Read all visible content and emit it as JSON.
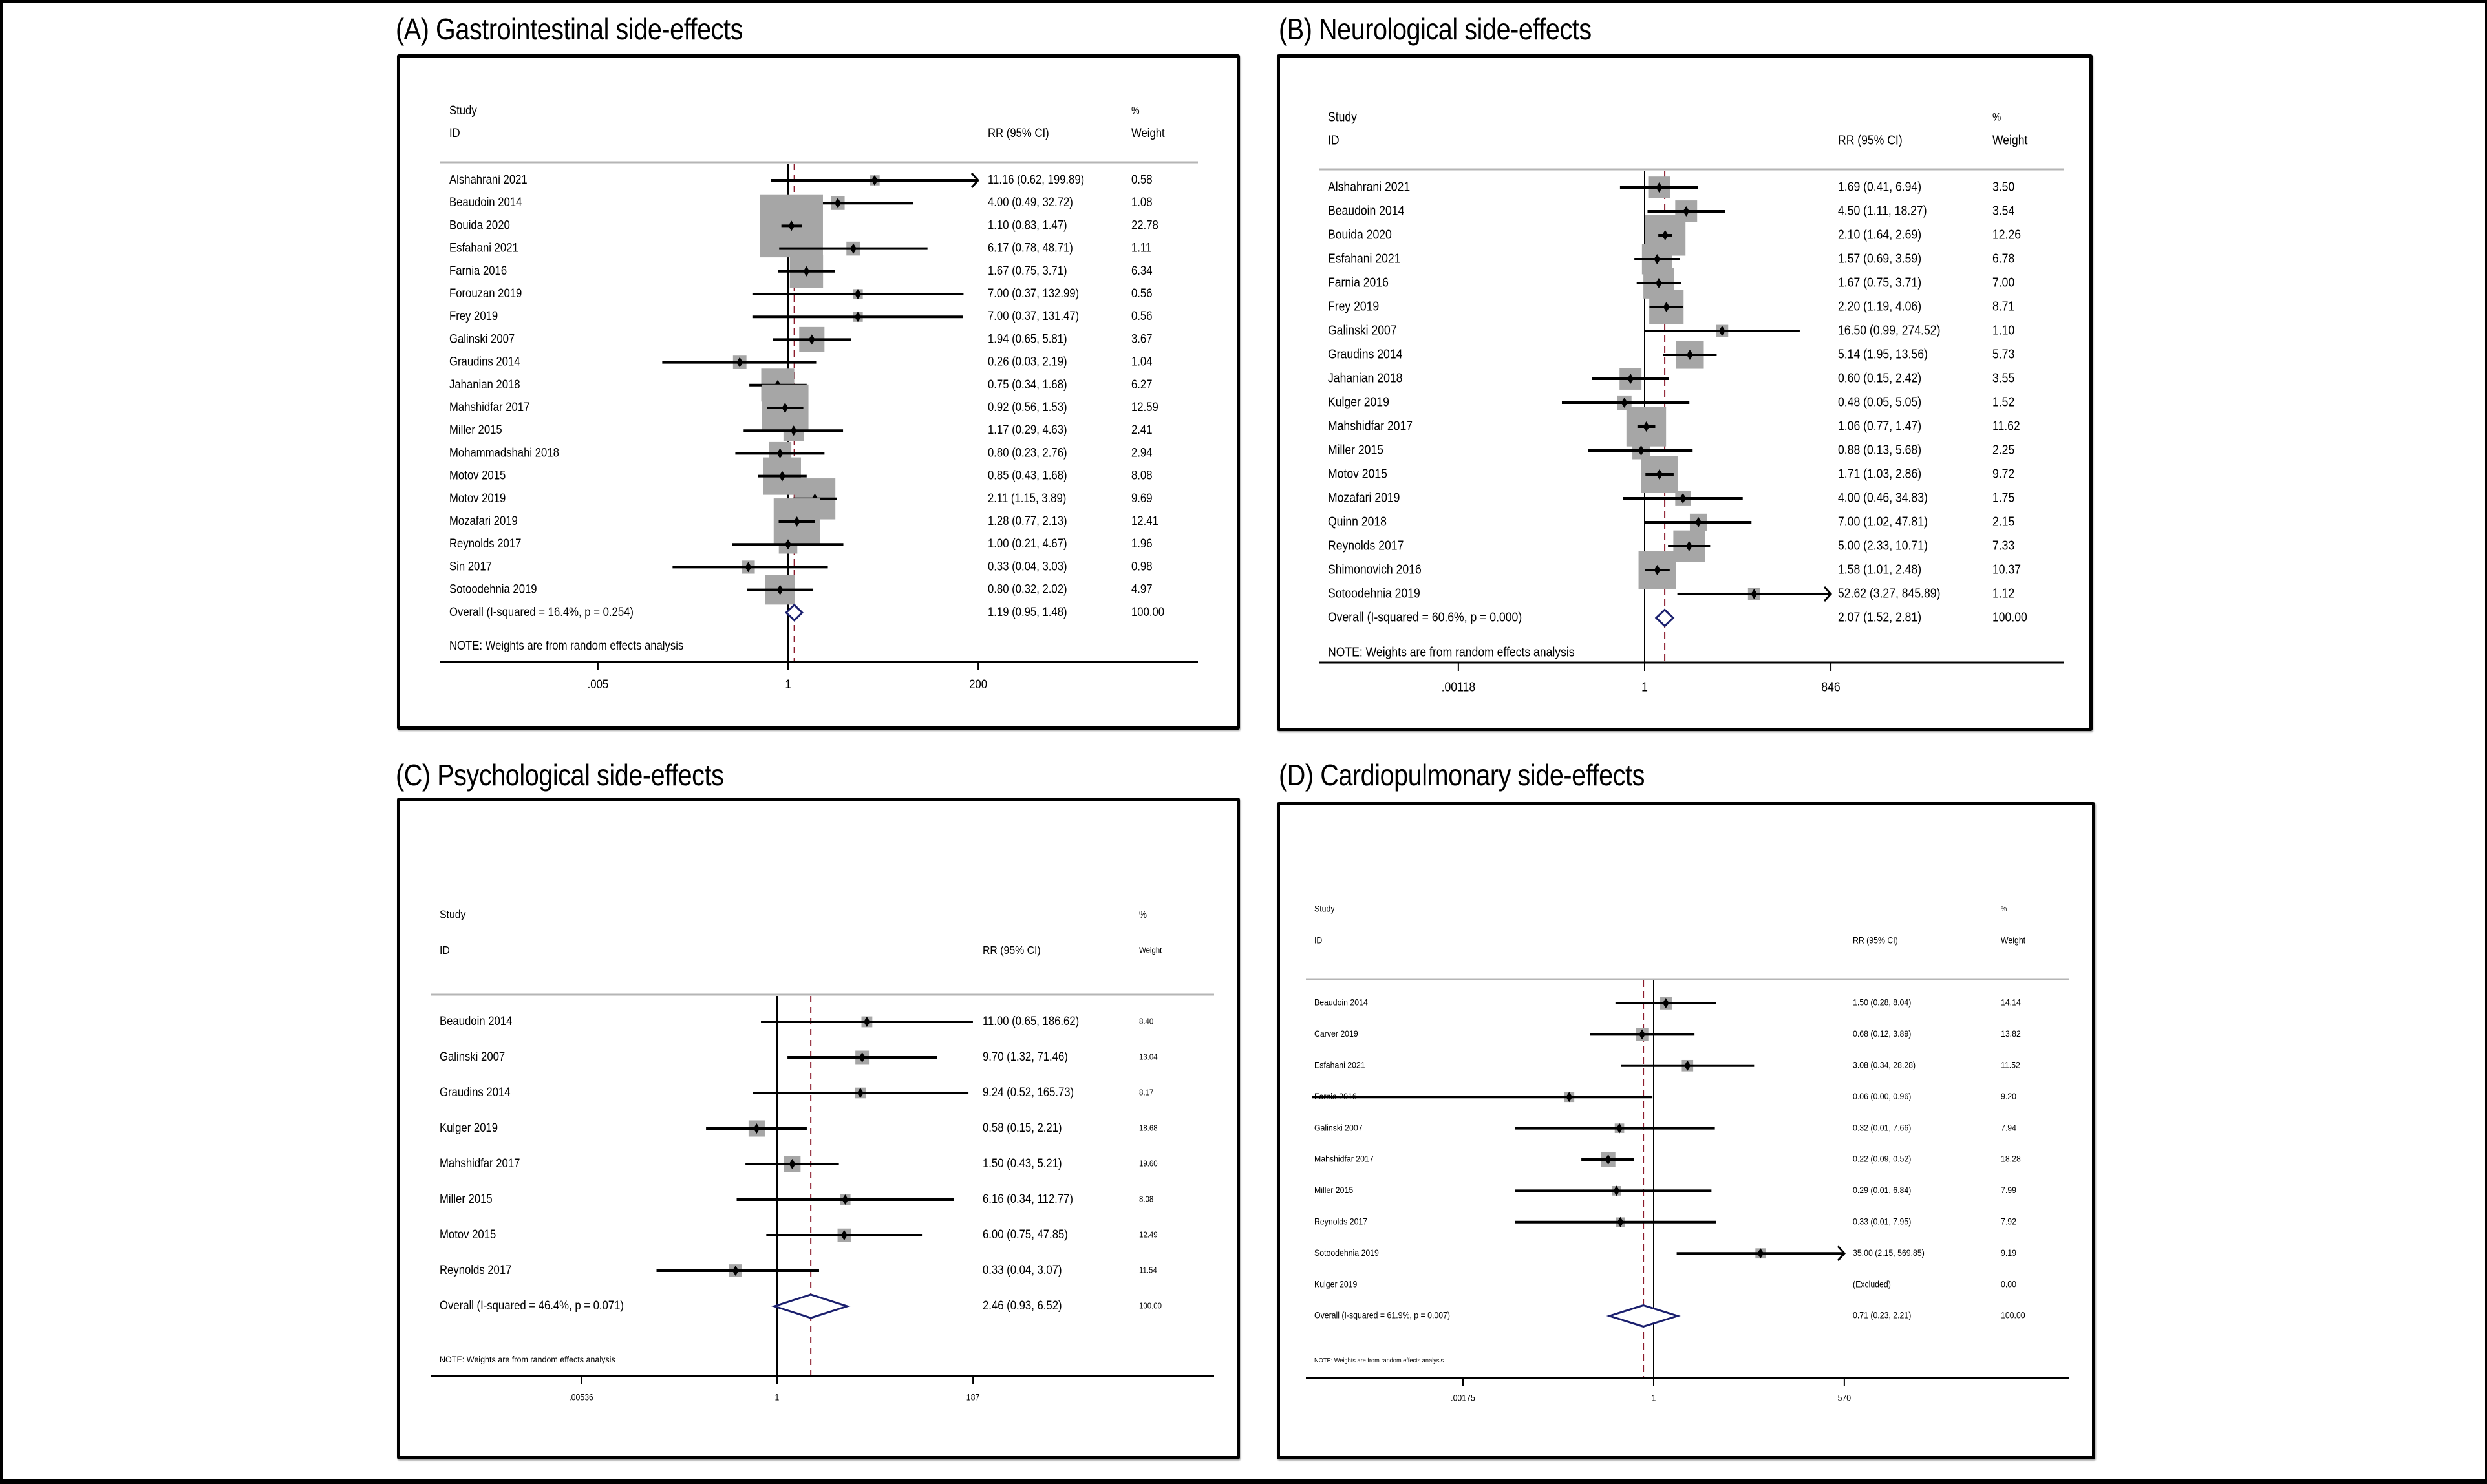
{
  "chart_data": [
    {
      "type": "forest",
      "panel": "A",
      "title": "(A) Gastrointestinal side-effects",
      "headers": {
        "study_line1": "Study",
        "study_line2": "ID",
        "effect": "RR (95% CI)",
        "weight_line1": "%",
        "weight_line2": "Weight"
      },
      "x_scale": "log",
      "x_ticks": [
        {
          "value": 0.005,
          "label": ".005"
        },
        {
          "value": 1,
          "label": "1"
        },
        {
          "value": 200,
          "label": "200"
        }
      ],
      "null_value": 1,
      "studies": [
        {
          "id": "Alshahrani 2021",
          "rr": 11.16,
          "lo": 0.62,
          "hi": 199.89,
          "text": "11.16 (0.62, 199.89)",
          "weight": 0.58,
          "weight_text": "0.58",
          "ci_truncated": true
        },
        {
          "id": "Beaudoin 2014",
          "rr": 4.0,
          "lo": 0.49,
          "hi": 32.72,
          "text": "4.00 (0.49, 32.72)",
          "weight": 1.08,
          "weight_text": "1.08"
        },
        {
          "id": "Bouida 2020",
          "rr": 1.1,
          "lo": 0.83,
          "hi": 1.47,
          "text": "1.10 (0.83, 1.47)",
          "weight": 22.78,
          "weight_text": "22.78"
        },
        {
          "id": "Esfahani 2021",
          "rr": 6.17,
          "lo": 0.78,
          "hi": 48.71,
          "text": "6.17 (0.78, 48.71)",
          "weight": 1.11,
          "weight_text": "1.11"
        },
        {
          "id": "Farnia 2016",
          "rr": 1.67,
          "lo": 0.75,
          "hi": 3.71,
          "text": "1.67 (0.75, 3.71)",
          "weight": 6.34,
          "weight_text": "6.34"
        },
        {
          "id": "Forouzan 2019",
          "rr": 7.0,
          "lo": 0.37,
          "hi": 132.99,
          "text": "7.00 (0.37, 132.99)",
          "weight": 0.56,
          "weight_text": "0.56"
        },
        {
          "id": "Frey 2019",
          "rr": 7.0,
          "lo": 0.37,
          "hi": 131.47,
          "text": "7.00 (0.37, 131.47)",
          "weight": 0.56,
          "weight_text": "0.56"
        },
        {
          "id": "Galinski 2007",
          "rr": 1.94,
          "lo": 0.65,
          "hi": 5.81,
          "text": "1.94 (0.65, 5.81)",
          "weight": 3.67,
          "weight_text": "3.67"
        },
        {
          "id": "Graudins 2014",
          "rr": 0.26,
          "lo": 0.03,
          "hi": 2.19,
          "text": "0.26 (0.03, 2.19)",
          "weight": 1.04,
          "weight_text": "1.04"
        },
        {
          "id": "Jahanian 2018",
          "rr": 0.75,
          "lo": 0.34,
          "hi": 1.68,
          "text": "0.75 (0.34, 1.68)",
          "weight": 6.27,
          "weight_text": "6.27"
        },
        {
          "id": "Mahshidfar 2017",
          "rr": 0.92,
          "lo": 0.56,
          "hi": 1.53,
          "text": "0.92 (0.56, 1.53)",
          "weight": 12.59,
          "weight_text": "12.59"
        },
        {
          "id": "Miller 2015",
          "rr": 1.17,
          "lo": 0.29,
          "hi": 4.63,
          "text": "1.17 (0.29, 4.63)",
          "weight": 2.41,
          "weight_text": "2.41"
        },
        {
          "id": "Mohammadshahi 2018",
          "rr": 0.8,
          "lo": 0.23,
          "hi": 2.76,
          "text": "0.80 (0.23, 2.76)",
          "weight": 2.94,
          "weight_text": "2.94"
        },
        {
          "id": "Motov 2015",
          "rr": 0.85,
          "lo": 0.43,
          "hi": 1.68,
          "text": "0.85 (0.43, 1.68)",
          "weight": 8.08,
          "weight_text": "8.08"
        },
        {
          "id": "Motov 2019",
          "rr": 2.11,
          "lo": 1.15,
          "hi": 3.89,
          "text": "2.11 (1.15, 3.89)",
          "weight": 9.69,
          "weight_text": "9.69"
        },
        {
          "id": "Mozafari 2019",
          "rr": 1.28,
          "lo": 0.77,
          "hi": 2.13,
          "text": "1.28 (0.77, 2.13)",
          "weight": 12.41,
          "weight_text": "12.41"
        },
        {
          "id": "Reynolds 2017",
          "rr": 1.0,
          "lo": 0.21,
          "hi": 4.67,
          "text": "1.00 (0.21, 4.67)",
          "weight": 1.96,
          "weight_text": "1.96"
        },
        {
          "id": "Sin 2017",
          "rr": 0.33,
          "lo": 0.04,
          "hi": 3.03,
          "text": "0.33 (0.04, 3.03)",
          "weight": 0.98,
          "weight_text": "0.98"
        },
        {
          "id": "Sotoodehnia 2019",
          "rr": 0.8,
          "lo": 0.32,
          "hi": 2.02,
          "text": "0.80 (0.32, 2.02)",
          "weight": 4.97,
          "weight_text": "4.97"
        }
      ],
      "overall": {
        "label": "Overall  (I-squared = 16.4%, p = 0.254)",
        "rr": 1.19,
        "lo": 0.95,
        "hi": 1.48,
        "text": "1.19 (0.95, 1.48)",
        "weight_text": "100.00",
        "i_squared": 16.4,
        "p": 0.254
      },
      "note": "NOTE: Weights are from random effects analysis"
    },
    {
      "type": "forest",
      "panel": "B",
      "title": "(B) Neurological side-effects",
      "headers": {
        "study_line1": "Study",
        "study_line2": "ID",
        "effect": "RR (95% CI)",
        "weight_line1": "%",
        "weight_line2": "Weight"
      },
      "x_scale": "log",
      "x_ticks": [
        {
          "value": 0.00118,
          "label": ".00118"
        },
        {
          "value": 1,
          "label": "1"
        },
        {
          "value": 846,
          "label": "846"
        }
      ],
      "null_value": 1,
      "studies": [
        {
          "id": "Alshahrani 2021",
          "rr": 1.69,
          "lo": 0.41,
          "hi": 6.94,
          "text": "1.69 (0.41, 6.94)",
          "weight": 3.5,
          "weight_text": "3.50"
        },
        {
          "id": "Beaudoin 2014",
          "rr": 4.5,
          "lo": 1.11,
          "hi": 18.27,
          "text": "4.50 (1.11, 18.27)",
          "weight": 3.54,
          "weight_text": "3.54"
        },
        {
          "id": "Bouida 2020",
          "rr": 2.1,
          "lo": 1.64,
          "hi": 2.69,
          "text": "2.10 (1.64, 2.69)",
          "weight": 12.26,
          "weight_text": "12.26"
        },
        {
          "id": "Esfahani 2021",
          "rr": 1.57,
          "lo": 0.69,
          "hi": 3.59,
          "text": "1.57 (0.69, 3.59)",
          "weight": 6.78,
          "weight_text": "6.78"
        },
        {
          "id": "Farnia 2016",
          "rr": 1.67,
          "lo": 0.75,
          "hi": 3.71,
          "text": "1.67 (0.75, 3.71)",
          "weight": 7.0,
          "weight_text": "7.00"
        },
        {
          "id": "Frey 2019",
          "rr": 2.2,
          "lo": 1.19,
          "hi": 4.06,
          "text": "2.20 (1.19, 4.06)",
          "weight": 8.71,
          "weight_text": "8.71"
        },
        {
          "id": "Galinski 2007",
          "rr": 16.5,
          "lo": 0.99,
          "hi": 274.52,
          "text": "16.50 (0.99, 274.52)",
          "weight": 1.1,
          "weight_text": "1.10"
        },
        {
          "id": "Graudins 2014",
          "rr": 5.14,
          "lo": 1.95,
          "hi": 13.56,
          "text": "5.14 (1.95, 13.56)",
          "weight": 5.73,
          "weight_text": "5.73"
        },
        {
          "id": "Jahanian 2018",
          "rr": 0.6,
          "lo": 0.15,
          "hi": 2.42,
          "text": "0.60 (0.15, 2.42)",
          "weight": 3.55,
          "weight_text": "3.55"
        },
        {
          "id": "Kulger 2019",
          "rr": 0.48,
          "lo": 0.05,
          "hi": 5.05,
          "text": "0.48 (0.05, 5.05)",
          "weight": 1.52,
          "weight_text": "1.52"
        },
        {
          "id": "Mahshidfar 2017",
          "rr": 1.06,
          "lo": 0.77,
          "hi": 1.47,
          "text": "1.06 (0.77, 1.47)",
          "weight": 11.62,
          "weight_text": "11.62"
        },
        {
          "id": "Miller 2015",
          "rr": 0.88,
          "lo": 0.13,
          "hi": 5.68,
          "text": "0.88 (0.13, 5.68)",
          "weight": 2.25,
          "weight_text": "2.25"
        },
        {
          "id": "Motov 2015",
          "rr": 1.71,
          "lo": 1.03,
          "hi": 2.86,
          "text": "1.71 (1.03, 2.86)",
          "weight": 9.72,
          "weight_text": "9.72"
        },
        {
          "id": "Mozafari 2019",
          "rr": 4.0,
          "lo": 0.46,
          "hi": 34.83,
          "text": "4.00 (0.46, 34.83)",
          "weight": 1.75,
          "weight_text": "1.75"
        },
        {
          "id": "Quinn 2018",
          "rr": 7.0,
          "lo": 1.02,
          "hi": 47.81,
          "text": "7.00 (1.02, 47.81)",
          "weight": 2.15,
          "weight_text": "2.15"
        },
        {
          "id": "Reynolds 2017",
          "rr": 5.0,
          "lo": 2.33,
          "hi": 10.71,
          "text": "5.00 (2.33, 10.71)",
          "weight": 7.33,
          "weight_text": "7.33"
        },
        {
          "id": "Shimonovich 2016",
          "rr": 1.58,
          "lo": 1.01,
          "hi": 2.48,
          "text": "1.58 (1.01, 2.48)",
          "weight": 10.37,
          "weight_text": "10.37"
        },
        {
          "id": "Sotoodehnia 2019",
          "rr": 52.62,
          "lo": 3.27,
          "hi": 845.89,
          "text": "52.62 (3.27, 845.89)",
          "weight": 1.12,
          "weight_text": "1.12",
          "ci_truncated": true
        }
      ],
      "overall": {
        "label": "Overall  (I-squared = 60.6%, p = 0.000)",
        "rr": 2.07,
        "lo": 1.52,
        "hi": 2.81,
        "text": "2.07 (1.52, 2.81)",
        "weight_text": "100.00",
        "i_squared": 60.6,
        "p": 0.0
      },
      "note": "NOTE: Weights are from random effects analysis"
    },
    {
      "type": "forest",
      "panel": "C",
      "title": "(C) Psychological side-effects",
      "headers": {
        "study_line1": "Study",
        "study_line2": "ID",
        "effect": "RR (95% CI)",
        "weight_line1": "%",
        "weight_line2": "Weight"
      },
      "x_scale": "log",
      "x_ticks": [
        {
          "value": 0.00536,
          "label": ".00536"
        },
        {
          "value": 1,
          "label": "1"
        },
        {
          "value": 187,
          "label": "187"
        }
      ],
      "null_value": 1,
      "studies": [
        {
          "id": "Beaudoin 2014",
          "rr": 11.0,
          "lo": 0.65,
          "hi": 186.62,
          "text": "11.00 (0.65, 186.62)",
          "weight": 8.4,
          "weight_text": "8.40"
        },
        {
          "id": "Galinski 2007",
          "rr": 9.7,
          "lo": 1.32,
          "hi": 71.46,
          "text": "9.70 (1.32, 71.46)",
          "weight": 13.04,
          "weight_text": "13.04"
        },
        {
          "id": "Graudins 2014",
          "rr": 9.24,
          "lo": 0.52,
          "hi": 165.73,
          "text": "9.24 (0.52, 165.73)",
          "weight": 8.17,
          "weight_text": "8.17"
        },
        {
          "id": "Kulger 2019",
          "rr": 0.58,
          "lo": 0.15,
          "hi": 2.21,
          "text": "0.58 (0.15, 2.21)",
          "weight": 18.68,
          "weight_text": "18.68"
        },
        {
          "id": "Mahshidfar 2017",
          "rr": 1.5,
          "lo": 0.43,
          "hi": 5.21,
          "text": "1.50 (0.43, 5.21)",
          "weight": 19.6,
          "weight_text": "19.60"
        },
        {
          "id": "Miller 2015",
          "rr": 6.16,
          "lo": 0.34,
          "hi": 112.77,
          "text": "6.16 (0.34, 112.77)",
          "weight": 8.08,
          "weight_text": "8.08"
        },
        {
          "id": "Motov 2015",
          "rr": 6.0,
          "lo": 0.75,
          "hi": 47.85,
          "text": "6.00 (0.75, 47.85)",
          "weight": 12.49,
          "weight_text": "12.49"
        },
        {
          "id": "Reynolds 2017",
          "rr": 0.33,
          "lo": 0.04,
          "hi": 3.07,
          "text": "0.33 (0.04, 3.07)",
          "weight": 11.54,
          "weight_text": "11.54"
        }
      ],
      "overall": {
        "label": "Overall  (I-squared = 46.4%, p = 0.071)",
        "rr": 2.46,
        "lo": 0.93,
        "hi": 6.52,
        "text": "2.46 (0.93, 6.52)",
        "weight_text": "100.00",
        "i_squared": 46.4,
        "p": 0.071
      },
      "note": "NOTE: Weights are from random effects analysis"
    },
    {
      "type": "forest",
      "panel": "D",
      "title": "(D) Cardiopulmonary side-effects",
      "headers": {
        "study_line1": "Study",
        "study_line2": "ID",
        "effect": "RR (95% CI)",
        "weight_line1": "%",
        "weight_line2": "Weight"
      },
      "x_scale": "log",
      "x_ticks": [
        {
          "value": 0.00175,
          "label": ".00175"
        },
        {
          "value": 1,
          "label": "1"
        },
        {
          "value": 570,
          "label": "570"
        }
      ],
      "null_value": 1,
      "studies": [
        {
          "id": "Beaudoin 2014",
          "rr": 1.5,
          "lo": 0.28,
          "hi": 8.04,
          "text": "1.50 (0.28, 8.04)",
          "weight": 14.14,
          "weight_text": "14.14"
        },
        {
          "id": "Carver 2019",
          "rr": 0.68,
          "lo": 0.12,
          "hi": 3.89,
          "text": "0.68 (0.12, 3.89)",
          "weight": 13.82,
          "weight_text": "13.82"
        },
        {
          "id": "Esfahani 2021",
          "rr": 3.08,
          "lo": 0.34,
          "hi": 28.28,
          "text": "3.08 (0.34, 28.28)",
          "weight": 11.52,
          "weight_text": "11.52"
        },
        {
          "id": "Farnia 2016",
          "rr": 0.06,
          "lo": 0.0,
          "hi": 0.96,
          "text": "0.06 (0.00, 0.96)",
          "weight": 9.2,
          "weight_text": "9.20"
        },
        {
          "id": "Galinski 2007",
          "rr": 0.32,
          "lo": 0.01,
          "hi": 7.66,
          "text": "0.32 (0.01, 7.66)",
          "weight": 7.94,
          "weight_text": "7.94"
        },
        {
          "id": "Mahshidfar 2017",
          "rr": 0.22,
          "lo": 0.09,
          "hi": 0.52,
          "text": "0.22 (0.09, 0.52)",
          "weight": 18.28,
          "weight_text": "18.28"
        },
        {
          "id": "Miller 2015",
          "rr": 0.29,
          "lo": 0.01,
          "hi": 6.84,
          "text": "0.29 (0.01, 6.84)",
          "weight": 7.99,
          "weight_text": "7.99"
        },
        {
          "id": "Reynolds 2017",
          "rr": 0.33,
          "lo": 0.01,
          "hi": 7.95,
          "text": "0.33 (0.01, 7.95)",
          "weight": 7.92,
          "weight_text": "7.92"
        },
        {
          "id": "Sotoodehnia 2019",
          "rr": 35.0,
          "lo": 2.15,
          "hi": 569.85,
          "text": "35.00 (2.15, 569.85)",
          "weight": 9.19,
          "weight_text": "9.19",
          "ci_truncated": true
        },
        {
          "id": "Kulger 2019",
          "rr": null,
          "lo": null,
          "hi": null,
          "text": "(Excluded)",
          "weight": 0.0,
          "weight_text": "0.00",
          "excluded": true
        }
      ],
      "overall": {
        "label": "Overall  (I-squared = 61.9%, p = 0.007)",
        "rr": 0.71,
        "lo": 0.23,
        "hi": 2.21,
        "text": "0.71 (0.23, 2.21)",
        "weight_text": "100.00",
        "i_squared": 61.9,
        "p": 0.007
      },
      "note": "NOTE: Weights are from random effects analysis"
    }
  ],
  "colors": {
    "weight_box": "#a6a6a6",
    "null_line": "#000000",
    "pooled_line": "#8b1a2b",
    "pooled_diamond": "#1a1f6e",
    "header_rule": "#b5b5b5"
  }
}
